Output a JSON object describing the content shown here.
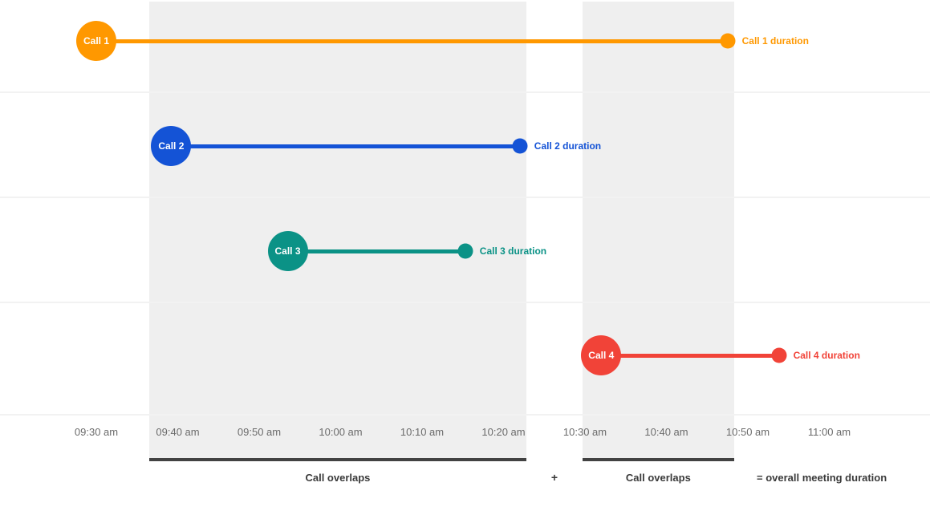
{
  "chart_data": {
    "type": "timeline",
    "title": "",
    "grid": true,
    "x_axis": {
      "unit": "time of day",
      "ticks": [
        {
          "label": "09:30 am",
          "min": 0
        },
        {
          "label": "09:40 am",
          "min": 10
        },
        {
          "label": "09:50 am",
          "min": 20
        },
        {
          "label": "10:00 am",
          "min": 30
        },
        {
          "label": "10:10 am",
          "min": 40
        },
        {
          "label": "10:20 am",
          "min": 50
        },
        {
          "label": "10:30 am",
          "min": 60
        },
        {
          "label": "10:40 am",
          "min": 70
        },
        {
          "label": "10:50 am",
          "min": 80
        },
        {
          "label": "11:00 am",
          "min": 90
        }
      ],
      "range_min": [
        0,
        90
      ]
    },
    "series": [
      {
        "name": "Call 1",
        "color": "#ff9800",
        "start_min": 0,
        "end_min": 77.5,
        "start_time": "09:30 am",
        "end_time": "10:48 am",
        "duration_label": "Call 1 duration"
      },
      {
        "name": "Call 2",
        "color": "#1453d6",
        "start_min": 9.2,
        "end_min": 52,
        "start_time": "09:39 am",
        "end_time": "10:22 am",
        "duration_label": "Call 2 duration"
      },
      {
        "name": "Call 3",
        "color": "#0b9286",
        "start_min": 23.5,
        "end_min": 45.3,
        "start_time": "09:54 am",
        "end_time": "10:15 am",
        "duration_label": "Call 3 duration"
      },
      {
        "name": "Call 4",
        "color": "#f14338",
        "start_min": 62,
        "end_min": 83.8,
        "start_time": "10:32 am",
        "end_time": "10:54 am",
        "duration_label": "Call 4 duration"
      }
    ],
    "overlap_regions": [
      {
        "label": "Call overlaps",
        "start_min": 6.5,
        "end_min": 52.8
      },
      {
        "label": "Call overlaps",
        "start_min": 59.7,
        "end_min": 78.3
      }
    ],
    "annotations": {
      "plus": "+",
      "equals": "= overall meeting duration"
    },
    "colors": {
      "region_fill": "#efefef",
      "region_bar": "#424242",
      "gridline": "#f2f2f2",
      "tick_text": "#6b6b6b",
      "caption_text": "#3a3a3a"
    }
  }
}
